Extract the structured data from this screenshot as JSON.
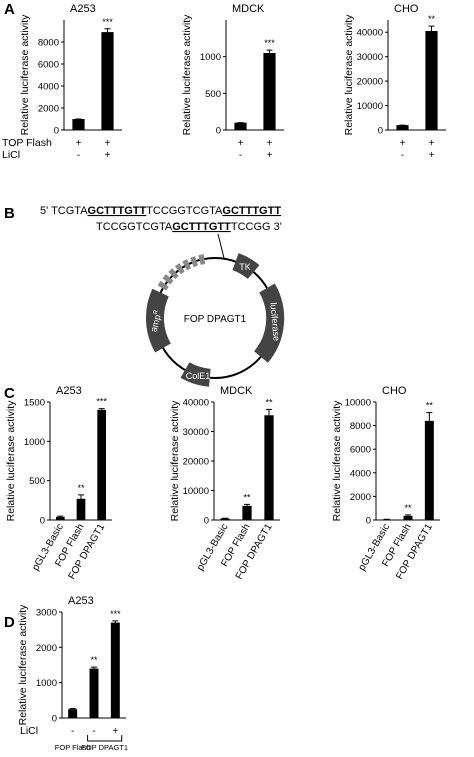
{
  "panel_labels": [
    "A",
    "B",
    "C",
    "D"
  ],
  "sequence": {
    "lines": [
      [
        {
          "text": "5' TCGTA"
        },
        {
          "text": "GCTTTGTT",
          "bold": true
        },
        {
          "text": "TCCGGTCGTA"
        },
        {
          "text": "GCTTTGTT",
          "bold": true
        }
      ],
      [
        {
          "text": "TCCGGTCGTA"
        },
        {
          "text": "GCTTTGTT",
          "bold": true
        },
        {
          "text": "TCCGG  3'"
        }
      ]
    ]
  },
  "plasmid": {
    "name": "FOP DPAGT1",
    "features": [
      {
        "label": "TK"
      },
      {
        "label": "luciferase"
      },
      {
        "label": "ColE1"
      },
      {
        "label": "amp",
        "superscript": "R"
      }
    ]
  },
  "chart_data": [
    {
      "type": "bar",
      "title": "A253",
      "ylabel": "Relative luciferase activity",
      "color": "#000000",
      "values": [
        1000,
        8900
      ],
      "errors": [
        0,
        300
      ],
      "annotations": [
        null,
        "***"
      ],
      "condition_labels": [
        "TOP Flash",
        "LiCl"
      ],
      "conditions": [
        [
          "+",
          "+"
        ],
        [
          "-",
          "+"
        ]
      ],
      "ylim": [
        0,
        10000
      ],
      "yticks": [
        0,
        2000,
        4000,
        6000,
        8000
      ]
    },
    {
      "type": "bar",
      "title": "MDCK",
      "ylabel": "Relative luciferase activity",
      "color": "#000000",
      "values": [
        100,
        1050
      ],
      "errors": [
        0,
        40
      ],
      "annotations": [
        null,
        "***"
      ],
      "conditions": [
        [
          "+",
          "+"
        ],
        [
          "-",
          "+"
        ]
      ],
      "ylim": [
        0,
        1500
      ],
      "yticks": [
        0,
        500,
        1000
      ]
    },
    {
      "type": "bar",
      "title": "CHO",
      "ylabel": "Relative luciferase activity",
      "color": "#000000",
      "values": [
        2000,
        40500
      ],
      "errors": [
        0,
        2000
      ],
      "annotations": [
        null,
        "**"
      ],
      "conditions": [
        [
          "+",
          "+"
        ],
        [
          "-",
          "+"
        ]
      ],
      "ylim": [
        0,
        45000
      ],
      "yticks": [
        0,
        10000,
        20000,
        30000,
        40000
      ]
    },
    {
      "type": "bar",
      "title": "A253",
      "ylabel": "Relative luciferase activity",
      "color": "#000000",
      "categories": [
        "pGL3-Basic",
        "FOP Flash",
        "FOP DPAGT1"
      ],
      "values": [
        40,
        270,
        1400
      ],
      "errors": [
        10,
        50,
        15
      ],
      "annotations": [
        null,
        "**",
        "***"
      ],
      "ylim": [
        0,
        1500
      ],
      "yticks": [
        0,
        500,
        1000,
        1500
      ]
    },
    {
      "type": "bar",
      "title": "MDCK",
      "ylabel": "Relative luciferase activity",
      "color": "#000000",
      "categories": [
        "pGL3-Basic",
        "FOP Flash",
        "FOP DPAGT1"
      ],
      "values": [
        500,
        4800,
        35500
      ],
      "errors": [
        100,
        500,
        2000
      ],
      "annotations": [
        null,
        "**",
        "**"
      ],
      "ylim": [
        0,
        40000
      ],
      "yticks": [
        0,
        10000,
        20000,
        30000,
        40000
      ]
    },
    {
      "type": "bar",
      "title": "CHO",
      "ylabel": "Relative luciferase activity",
      "color": "#000000",
      "categories": [
        "pGL3-Basic",
        "FOP Flash",
        "FOP DPAGT1"
      ],
      "values": [
        50,
        350,
        8400
      ],
      "errors": [
        10,
        80,
        700
      ],
      "annotations": [
        null,
        "**",
        "**"
      ],
      "ylim": [
        0,
        10000
      ],
      "yticks": [
        0,
        2000,
        4000,
        6000,
        8000,
        10000
      ]
    },
    {
      "type": "bar",
      "title": "A253",
      "ylabel": "Relative luciferase activity",
      "color": "#000000",
      "values": [
        250,
        1400,
        2700
      ],
      "errors": [
        20,
        40,
        50
      ],
      "annotations": [
        null,
        "**",
        "***"
      ],
      "condition_labels": [
        "LiCl"
      ],
      "conditions": [
        [
          "-",
          "-",
          "+"
        ]
      ],
      "group_labels": [
        "FOP Flash",
        "FOP DPAGT1"
      ],
      "ylim": [
        0,
        3000
      ],
      "yticks": [
        0,
        1000,
        2000,
        3000
      ]
    }
  ]
}
